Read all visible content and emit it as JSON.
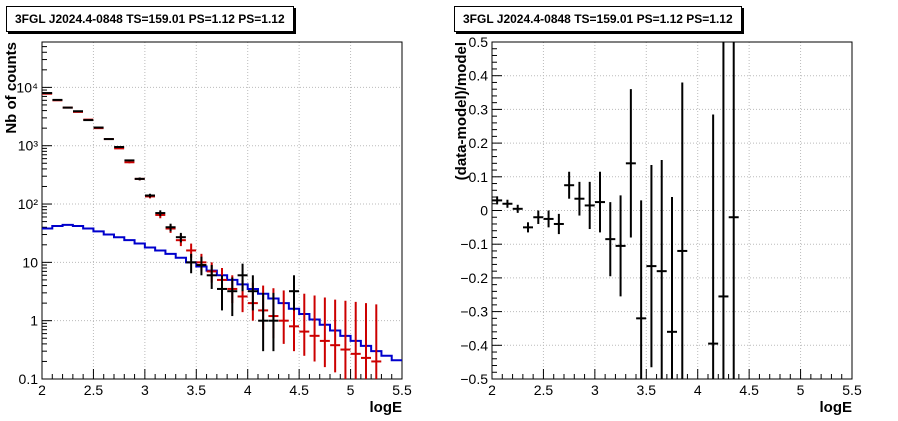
{
  "chart_data": [
    {
      "type": "line",
      "title": "3FGL J2024.4-0848 TS=159.01 PS=1.12 PS=1.12",
      "xlabel": "logE",
      "ylabel": "Nb of counts",
      "xlim": [
        2,
        5.5
      ],
      "ylim": [
        0.1,
        60000
      ],
      "yscale": "log",
      "grid": true,
      "x_ticks": [
        "2",
        "2.5",
        "3",
        "3.5",
        "4",
        "4.5",
        "5",
        "5.5"
      ],
      "y_ticks": [
        "0.1",
        "1",
        "10",
        "10²",
        "10³",
        "10⁴"
      ],
      "bin_edges": [
        2.0,
        2.1,
        2.2,
        2.3,
        2.4,
        2.5,
        2.6,
        2.7,
        2.8,
        2.9,
        3.0,
        3.1,
        3.2,
        3.3,
        3.4,
        3.5,
        3.6,
        3.7,
        3.8,
        3.9,
        4.0,
        4.1,
        4.2,
        4.3,
        4.4,
        4.5,
        4.6,
        4.7,
        4.8,
        4.9,
        5.0,
        5.1,
        5.2,
        5.3,
        5.4,
        5.5
      ],
      "series": [
        {
          "color": "#cc0000",
          "x": [
            2.05,
            2.15,
            2.25,
            2.35,
            2.45,
            2.55,
            2.65,
            2.75,
            2.85,
            2.95,
            3.05,
            3.15,
            3.25,
            3.35,
            3.45,
            3.55,
            3.65,
            3.75,
            3.85,
            3.95,
            4.05,
            4.15,
            4.25,
            4.35,
            4.45,
            4.55,
            4.65,
            4.75,
            4.85,
            4.95,
            5.05,
            5.15,
            5.25
          ],
          "y": [
            7800,
            6000,
            4500,
            3800,
            2800,
            2000,
            1300,
            900,
            520,
            270,
            135,
            65,
            38,
            24,
            16,
            10,
            7,
            5,
            3.5,
            2.6,
            2.0,
            1.5,
            1.2,
            1.0,
            0.8,
            0.65,
            0.55,
            0.45,
            0.38,
            0.32,
            0.27,
            0.23,
            0.2
          ],
          "err_low": [
            7700,
            5900,
            4420,
            3740,
            2750,
            1960,
            1270,
            880,
            500,
            255,
            125,
            57,
            32,
            19,
            12,
            7,
            4.5,
            3,
            2,
            1.4,
            1.0,
            0.7,
            0.5,
            0.4,
            0.3,
            0.25,
            0.2,
            0.16,
            0.13,
            0.1,
            0.09,
            0.07,
            0.06
          ],
          "err_high": [
            7900,
            6100,
            4580,
            3860,
            2850,
            2040,
            1330,
            920,
            540,
            285,
            145,
            73,
            44,
            30,
            21,
            14,
            10,
            8,
            6,
            5,
            4.5,
            4,
            3.6,
            3.3,
            3,
            2.9,
            2.7,
            2.5,
            2.3,
            2.2,
            2.1,
            2.0,
            1.9
          ]
        },
        {
          "color": "#000000",
          "x": [
            2.05,
            2.15,
            2.25,
            2.35,
            2.45,
            2.55,
            2.65,
            2.75,
            2.85,
            2.95,
            3.05,
            3.15,
            3.25,
            3.35,
            3.45,
            3.55,
            3.65,
            3.75,
            3.85,
            3.95,
            4.05,
            4.15,
            4.25,
            4.45
          ],
          "y": [
            8000,
            6100,
            4500,
            3900,
            2750,
            2050,
            1300,
            950,
            560,
            270,
            140,
            70,
            40,
            27,
            10,
            9,
            6,
            3.5,
            3.2,
            6,
            3.2,
            1.0,
            1.0,
            3.2
          ],
          "err_low": [
            7900,
            6000,
            4420,
            3840,
            2700,
            2010,
            1270,
            920,
            540,
            255,
            130,
            62,
            34,
            22,
            6.5,
            6,
            3.5,
            1.5,
            1.2,
            3.2,
            1.5,
            0.3,
            0.3,
            1.5
          ],
          "err_high": [
            8100,
            6200,
            4580,
            3960,
            2800,
            2090,
            1330,
            980,
            580,
            285,
            150,
            78,
            46,
            32,
            14,
            12.5,
            9,
            6,
            5.5,
            9.5,
            6,
            3,
            3,
            6
          ]
        },
        {
          "color": "#0000cc",
          "x": [
            2.0,
            2.1,
            2.2,
            2.3,
            2.4,
            2.5,
            2.6,
            2.7,
            2.8,
            2.9,
            3.0,
            3.1,
            3.2,
            3.3,
            3.4,
            3.5,
            3.6,
            3.7,
            3.8,
            3.9,
            4.0,
            4.1,
            4.2,
            4.3,
            4.4,
            4.5,
            4.6,
            4.7,
            4.8,
            4.9,
            5.0,
            5.1,
            5.2,
            5.3,
            5.4
          ],
          "y": [
            38,
            42,
            44,
            42,
            38,
            34,
            30,
            27,
            24,
            21,
            18,
            16,
            14,
            12,
            10,
            8.5,
            7.2,
            6,
            5,
            4.2,
            3.5,
            2.9,
            2.4,
            2.0,
            1.6,
            1.3,
            1.05,
            0.85,
            0.68,
            0.55,
            0.45,
            0.37,
            0.3,
            0.25,
            0.21
          ]
        }
      ]
    },
    {
      "type": "scatter",
      "title": "3FGL J2024.4-0848 TS=159.01 PS=1.12 PS=1.12",
      "xlabel": "logE",
      "ylabel": "(data-model)/model",
      "xlim": [
        2,
        5.5
      ],
      "ylim": [
        -0.5,
        0.5
      ],
      "grid": true,
      "x_ticks": [
        "2",
        "2.5",
        "3",
        "3.5",
        "4",
        "4.5",
        "5",
        "5.5"
      ],
      "y_ticks": [
        "−0.5",
        "−0.4",
        "−0.3",
        "−0.2",
        "−0.1",
        "0",
        "0.1",
        "0.2",
        "0.3",
        "0.4",
        "0.5"
      ],
      "series": [
        {
          "color": "#000000",
          "x": [
            2.05,
            2.15,
            2.25,
            2.35,
            2.45,
            2.55,
            2.65,
            2.75,
            2.85,
            2.95,
            3.05,
            3.15,
            3.25,
            3.35,
            3.45,
            3.55,
            3.65,
            3.75,
            3.85,
            4.15,
            4.25,
            4.35
          ],
          "y": [
            0.03,
            0.02,
            0.005,
            -0.05,
            -0.02,
            -0.025,
            -0.04,
            0.075,
            0.035,
            0.015,
            0.025,
            -0.085,
            -0.105,
            0.14,
            -0.32,
            -0.165,
            -0.18,
            -0.36,
            -0.12,
            -0.395,
            -0.255,
            -0.02
          ],
          "err": [
            0.012,
            0.012,
            0.012,
            0.015,
            0.02,
            0.025,
            0.03,
            0.04,
            0.05,
            0.07,
            0.09,
            0.11,
            0.15,
            0.22,
            0.35,
            0.3,
            0.33,
            0.4,
            0.5,
            0.68,
            0.8,
            0.9
          ]
        }
      ]
    }
  ]
}
